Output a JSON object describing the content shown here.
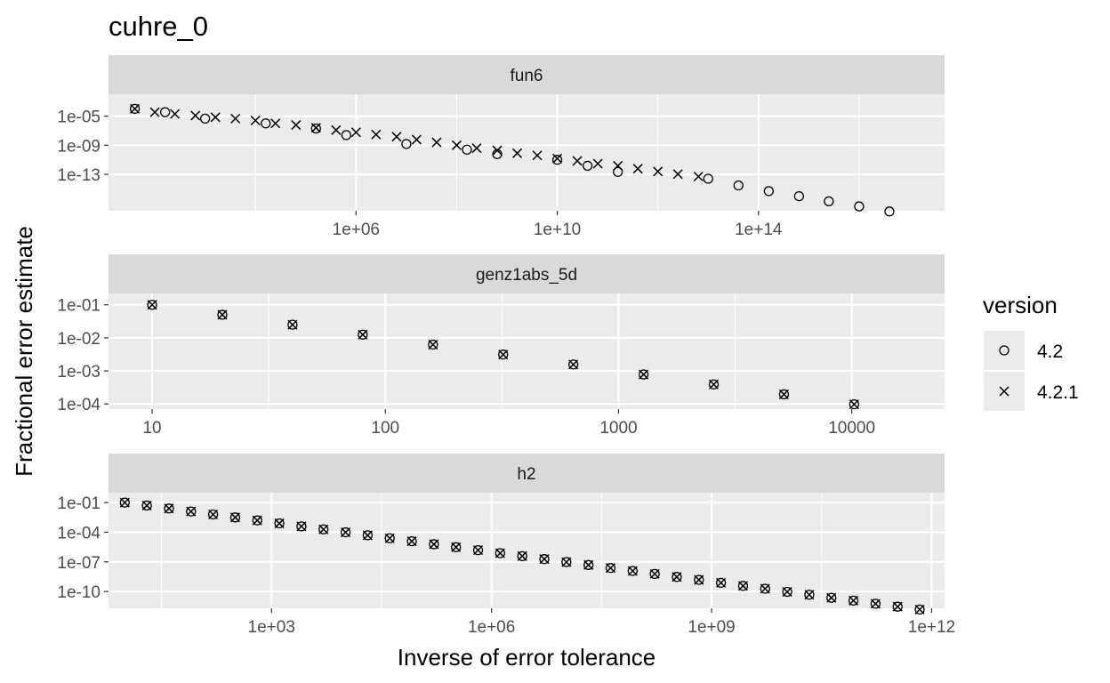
{
  "chart_data": {
    "type": "scatter",
    "title": "cuhre_0",
    "xlabel": "Inverse of error tolerance",
    "ylabel": "Fractional error estimate",
    "x_scale": "log10",
    "y_scale": "log10",
    "grid": true,
    "legend": {
      "title": "version",
      "placement": "right",
      "entries": [
        {
          "label": "4.2",
          "shape": "circle"
        },
        {
          "label": "4.2.1",
          "shape": "cross"
        }
      ]
    },
    "panels": [
      {
        "strip": "fun6",
        "xlim": [
          12,
          500000000000000000
        ],
        "ylim": [
          1e-18,
          0.01
        ],
        "x_ticks": [
          {
            "value": 1000000.0,
            "label": "1e+06"
          },
          {
            "value": 10000000000.0,
            "label": "1e+10"
          },
          {
            "value": 100000000000000.0,
            "label": "1e+14"
          }
        ],
        "y_ticks": [
          {
            "value": 1e-05,
            "label": "1e-05"
          },
          {
            "value": 1e-09,
            "label": "1e-09"
          },
          {
            "value": 1e-13,
            "label": "1e-13"
          }
        ],
        "series": [
          {
            "name": "4.2",
            "shape": "circle",
            "x": [
              40,
              160,
              1000,
              16000,
              160000,
              640000,
              10000000,
              160000000,
              640000000,
              10000000000,
              40000000000,
              160000000000,
              10000000000000,
              40000000000000,
              160000000000000,
              640000000000000,
              2500000000000000,
              10000000000000000,
              40000000000000000
            ],
            "y": [
              0.0001,
              3.5e-05,
              4.5e-06,
              1e-06,
              2e-07,
              2.5e-08,
              1.5e-09,
              2.5e-10,
              6e-11,
              1e-11,
              1.5e-12,
              2.2e-13,
              2.5e-14,
              3e-15,
              5e-16,
              1e-16,
              2e-17,
              4e-18,
              8e-19
            ],
            "note_x": [
              40,
              160,
              640,
              4000,
              16000,
              640000,
              2500000,
              10000000,
              160000000,
              640000000,
              10000000000,
              40000000000,
              160000000000,
              640000000000,
              2500000000000
            ],
            "note_y": [
              0.0001,
              3.5e-05,
              1.2e-05,
              4.5e-06,
              1e-06,
              6e-08,
              2.5e-08,
              6e-09,
              2.5e-10,
              6e-11,
              1e-11,
              1.5e-12,
              2.2e-13,
              3e-14,
              8e-15
            ]
          },
          {
            "name": "4.2.1",
            "shape": "cross",
            "x": [
              40,
              100,
              250,
              640,
              1600,
              4000,
              10000,
              25000,
              64000,
              160000,
              400000,
              1000000,
              2500000,
              6400000,
              16000000,
              40000000,
              100000000,
              250000000,
              640000000,
              1600000000,
              4000000000,
              10000000000,
              25000000000,
              64000000000,
              160000000000,
              400000000000,
              1000000000000,
              2500000000000,
              6400000000000
            ],
            "y": [
              0.0001,
              3.5e-05,
              2e-05,
              1.2e-05,
              7e-06,
              4.5e-06,
              2.5e-06,
              1e-06,
              6e-07,
              2.5e-07,
              1.2e-07,
              6e-08,
              3e-08,
              1.5e-08,
              6e-09,
              2.5e-09,
              1e-09,
              4e-10,
              2e-10,
              8e-11,
              4e-11,
              1.5e-11,
              7e-12,
              3e-12,
              1.5e-12,
              6e-13,
              2.5e-13,
              1.1e-13,
              5e-14
            ]
          }
        ]
      },
      {
        "strip": "genz1abs_5d",
        "xlim": [
          6.5,
          25000
        ],
        "ylim": [
          7e-05,
          0.22
        ],
        "x_ticks": [
          {
            "value": 10,
            "label": "10"
          },
          {
            "value": 100,
            "label": "100"
          },
          {
            "value": 1000,
            "label": "1000"
          },
          {
            "value": 10000,
            "label": "10000"
          }
        ],
        "y_ticks": [
          {
            "value": 0.1,
            "label": "1e-01"
          },
          {
            "value": 0.01,
            "label": "1e-02"
          },
          {
            "value": 0.001,
            "label": "1e-03"
          },
          {
            "value": 0.0001,
            "label": "1e-04"
          }
        ],
        "series": [
          {
            "name": "4.2",
            "shape": "circle",
            "x": [
              10,
              20,
              40,
              80,
              160,
              320,
              640,
              1280,
              2560,
              5120,
              10240
            ],
            "y": [
              0.1,
              0.05,
              0.025,
              0.0125,
              0.00625,
              0.003125,
              0.0015625,
              0.00078,
              0.00039,
              0.000195,
              9.77e-05
            ]
          },
          {
            "name": "4.2.1",
            "shape": "cross",
            "x": [
              10,
              20,
              40,
              80,
              160,
              320,
              640,
              1280,
              2560,
              5120,
              10240
            ],
            "y": [
              0.1,
              0.05,
              0.025,
              0.0125,
              0.00625,
              0.003125,
              0.0015625,
              0.00078,
              0.00039,
              0.000195,
              9.77e-05
            ]
          }
        ]
      },
      {
        "strip": "h2",
        "xlim": [
          6,
          1500000000000
        ],
        "ylim": [
          2e-12,
          1
        ],
        "x_ticks": [
          {
            "value": 1000.0,
            "label": "1e+03"
          },
          {
            "value": 1000000.0,
            "label": "1e+06"
          },
          {
            "value": 1000000000.0,
            "label": "1e+09"
          },
          {
            "value": 1000000000000.0,
            "label": "1e+12"
          }
        ],
        "y_ticks": [
          {
            "value": 0.1,
            "label": "1e-01"
          },
          {
            "value": 0.0001,
            "label": "1e-04"
          },
          {
            "value": 1e-07,
            "label": "1e-07"
          },
          {
            "value": 1e-10,
            "label": "1e-10"
          }
        ],
        "series": [
          {
            "name": "4.2",
            "shape": "circle",
            "x": [
              10,
              20,
              40,
              80,
              160,
              320,
              640,
              1280,
              2560,
              5120,
              10240,
              20480,
              40960,
              81920,
              163840,
              327680,
              655360,
              1310720,
              2621440,
              5242880,
              10485760,
              20971520,
              41943040,
              83886080,
              167772160,
              335544320,
              671088640,
              1342177280,
              2684354560,
              5368709120,
              10737418240,
              21474836480,
              42949672960,
              85899345920,
              171798691840,
              343597383680,
              687194767360
            ],
            "y": [
              0.1,
              0.05,
              0.025,
              0.0125,
              0.00625,
              0.003125,
              0.0015625,
              0.00078,
              0.00039,
              0.000195,
              9.77e-05,
              4.88e-05,
              2.44e-05,
              1.22e-05,
              6.1e-06,
              3.05e-06,
              1.53e-06,
              7.6e-07,
              3.8e-07,
              1.9e-07,
              9.5e-08,
              4.8e-08,
              2.4e-08,
              1.2e-08,
              6e-09,
              3e-09,
              1.5e-09,
              7.5e-10,
              3.7e-10,
              1.9e-10,
              9.3e-11,
              4.7e-11,
              2.3e-11,
              1.2e-11,
              5.8e-12,
              2.9e-12,
              1.5e-12
            ]
          },
          {
            "name": "4.2.1",
            "shape": "cross",
            "x": [
              10,
              20,
              40,
              80,
              160,
              320,
              640,
              1280,
              2560,
              5120,
              10240,
              20480,
              40960,
              81920,
              163840,
              327680,
              655360,
              1310720,
              2621440,
              5242880,
              10485760,
              20971520,
              41943040,
              83886080,
              167772160,
              335544320,
              671088640,
              1342177280,
              2684354560,
              5368709120,
              10737418240,
              21474836480,
              42949672960,
              85899345920,
              171798691840,
              343597383680,
              687194767360
            ],
            "y": [
              0.1,
              0.05,
              0.025,
              0.0125,
              0.00625,
              0.003125,
              0.0015625,
              0.00078,
              0.00039,
              0.000195,
              9.77e-05,
              4.88e-05,
              2.44e-05,
              1.22e-05,
              6.1e-06,
              3.05e-06,
              1.53e-06,
              7.6e-07,
              3.8e-07,
              1.9e-07,
              9.5e-08,
              4.8e-08,
              2.4e-08,
              1.2e-08,
              6e-09,
              3e-09,
              1.5e-09,
              7.5e-10,
              3.7e-10,
              1.9e-10,
              9.3e-11,
              4.7e-11,
              2.3e-11,
              1.2e-11,
              5.8e-12,
              2.9e-12,
              1.5e-12
            ]
          }
        ]
      }
    ]
  }
}
